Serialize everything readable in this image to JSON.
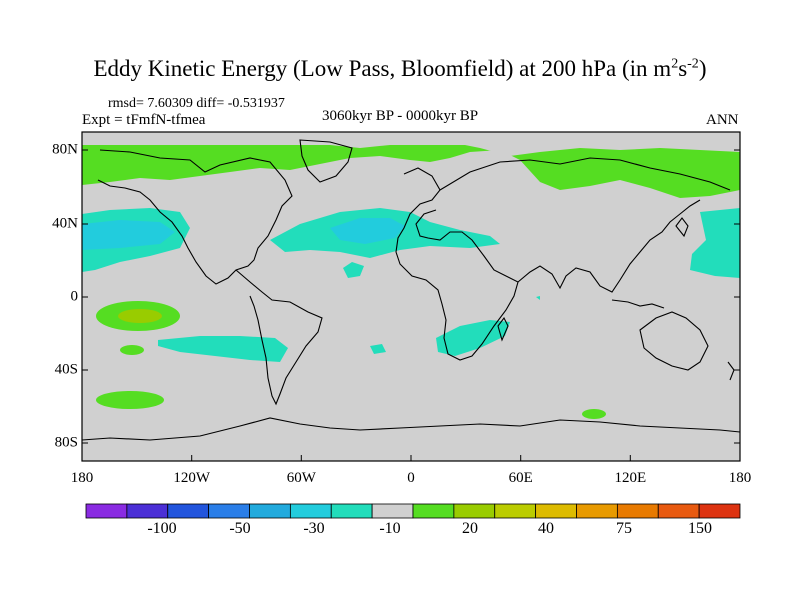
{
  "title_main": "Eddy Kinetic Energy (Low Pass, Bloomfield) at 200 hPa (in m",
  "title_sup1": "2",
  "title_s": "s",
  "title_sup2": "-2",
  "title_end": ")",
  "stats": "rmsd= 7.60309 diff= -0.531937",
  "expt": "Expt = tFmfN-tfmea",
  "period": "3060kyr BP - 0000kyr BP",
  "season": "ANN",
  "colors": {
    "land_bg": "#d0d0d0",
    "coast": "#000000",
    "green": "#55dd22",
    "teal": "#22ddbb",
    "teal_dark": "#22ccdd",
    "yellowgreen": "#99cc00"
  },
  "chart_data": {
    "type": "map",
    "field": "Eddy Kinetic Energy anomaly",
    "units": "m2s-2",
    "x_ticks": [
      "180",
      "120W",
      "60W",
      "0",
      "60E",
      "120E",
      "180"
    ],
    "y_ticks": [
      "80N",
      "40N",
      "0",
      "40S",
      "80S"
    ],
    "colorbar": {
      "colors": [
        "#8a2be2",
        "#4b2fd6",
        "#2255dd",
        "#2a7ee8",
        "#22aadd",
        "#22ccdd",
        "#22ddbb",
        "#d0d0d0",
        "#55dd22",
        "#99cc00",
        "#bbcc00",
        "#ddbb00",
        "#e89a00",
        "#e87a00",
        "#e85a10",
        "#dd3311"
      ],
      "labels": [
        "-100",
        "-50",
        "-30",
        "-10",
        "20",
        "40",
        "75",
        "150"
      ]
    }
  }
}
